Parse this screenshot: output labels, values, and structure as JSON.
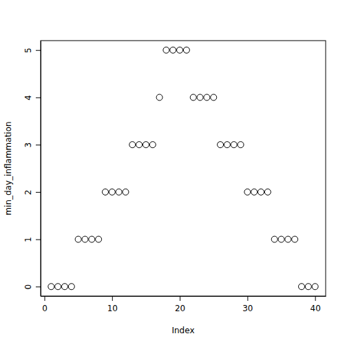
{
  "chart_data": {
    "type": "scatter",
    "xlabel": "Index",
    "ylabel": "min_day_inflammation",
    "x": [
      1,
      2,
      3,
      4,
      5,
      6,
      7,
      8,
      9,
      10,
      11,
      12,
      13,
      14,
      15,
      16,
      17,
      18,
      19,
      20,
      21,
      22,
      23,
      24,
      25,
      26,
      27,
      28,
      29,
      30,
      31,
      32,
      33,
      34,
      35,
      36,
      37,
      38,
      39,
      40
    ],
    "values": [
      0,
      0,
      0,
      0,
      1,
      1,
      1,
      1,
      2,
      2,
      2,
      2,
      3,
      3,
      3,
      3,
      4,
      5,
      5,
      5,
      5,
      4,
      4,
      4,
      4,
      3,
      3,
      3,
      3,
      2,
      2,
      2,
      2,
      1,
      1,
      1,
      1,
      0,
      0,
      0
    ],
    "xlim": [
      -0.56,
      41.56
    ],
    "ylim": [
      -0.2,
      5.2
    ],
    "xticks": [
      0,
      10,
      20,
      30,
      40
    ],
    "yticks": [
      0,
      1,
      2,
      3,
      4,
      5
    ],
    "marker": "circle",
    "color": "black",
    "grid": false
  }
}
